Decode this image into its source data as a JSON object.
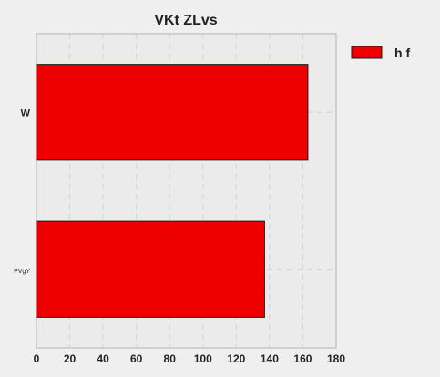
{
  "chart_data": {
    "type": "bar",
    "orientation": "horizontal",
    "title": "VKt ZLvs",
    "categories": [
      "W",
      "PVgY"
    ],
    "series": [
      {
        "name": "h f",
        "values": [
          163,
          137
        ]
      }
    ],
    "xlim": [
      0,
      180
    ],
    "xticks": [
      0,
      20,
      40,
      60,
      80,
      100,
      120,
      140,
      160,
      180
    ],
    "grid": true,
    "legend_position": "top-right outside",
    "colors": {
      "background": "#efefef",
      "plot_background": "#ebebeb",
      "bar_fill": "#ee0000",
      "bar_stroke": "#1a1a1a",
      "grid": "#d6d6d6",
      "axis": "#bdbdbd",
      "text": "#222222"
    }
  }
}
